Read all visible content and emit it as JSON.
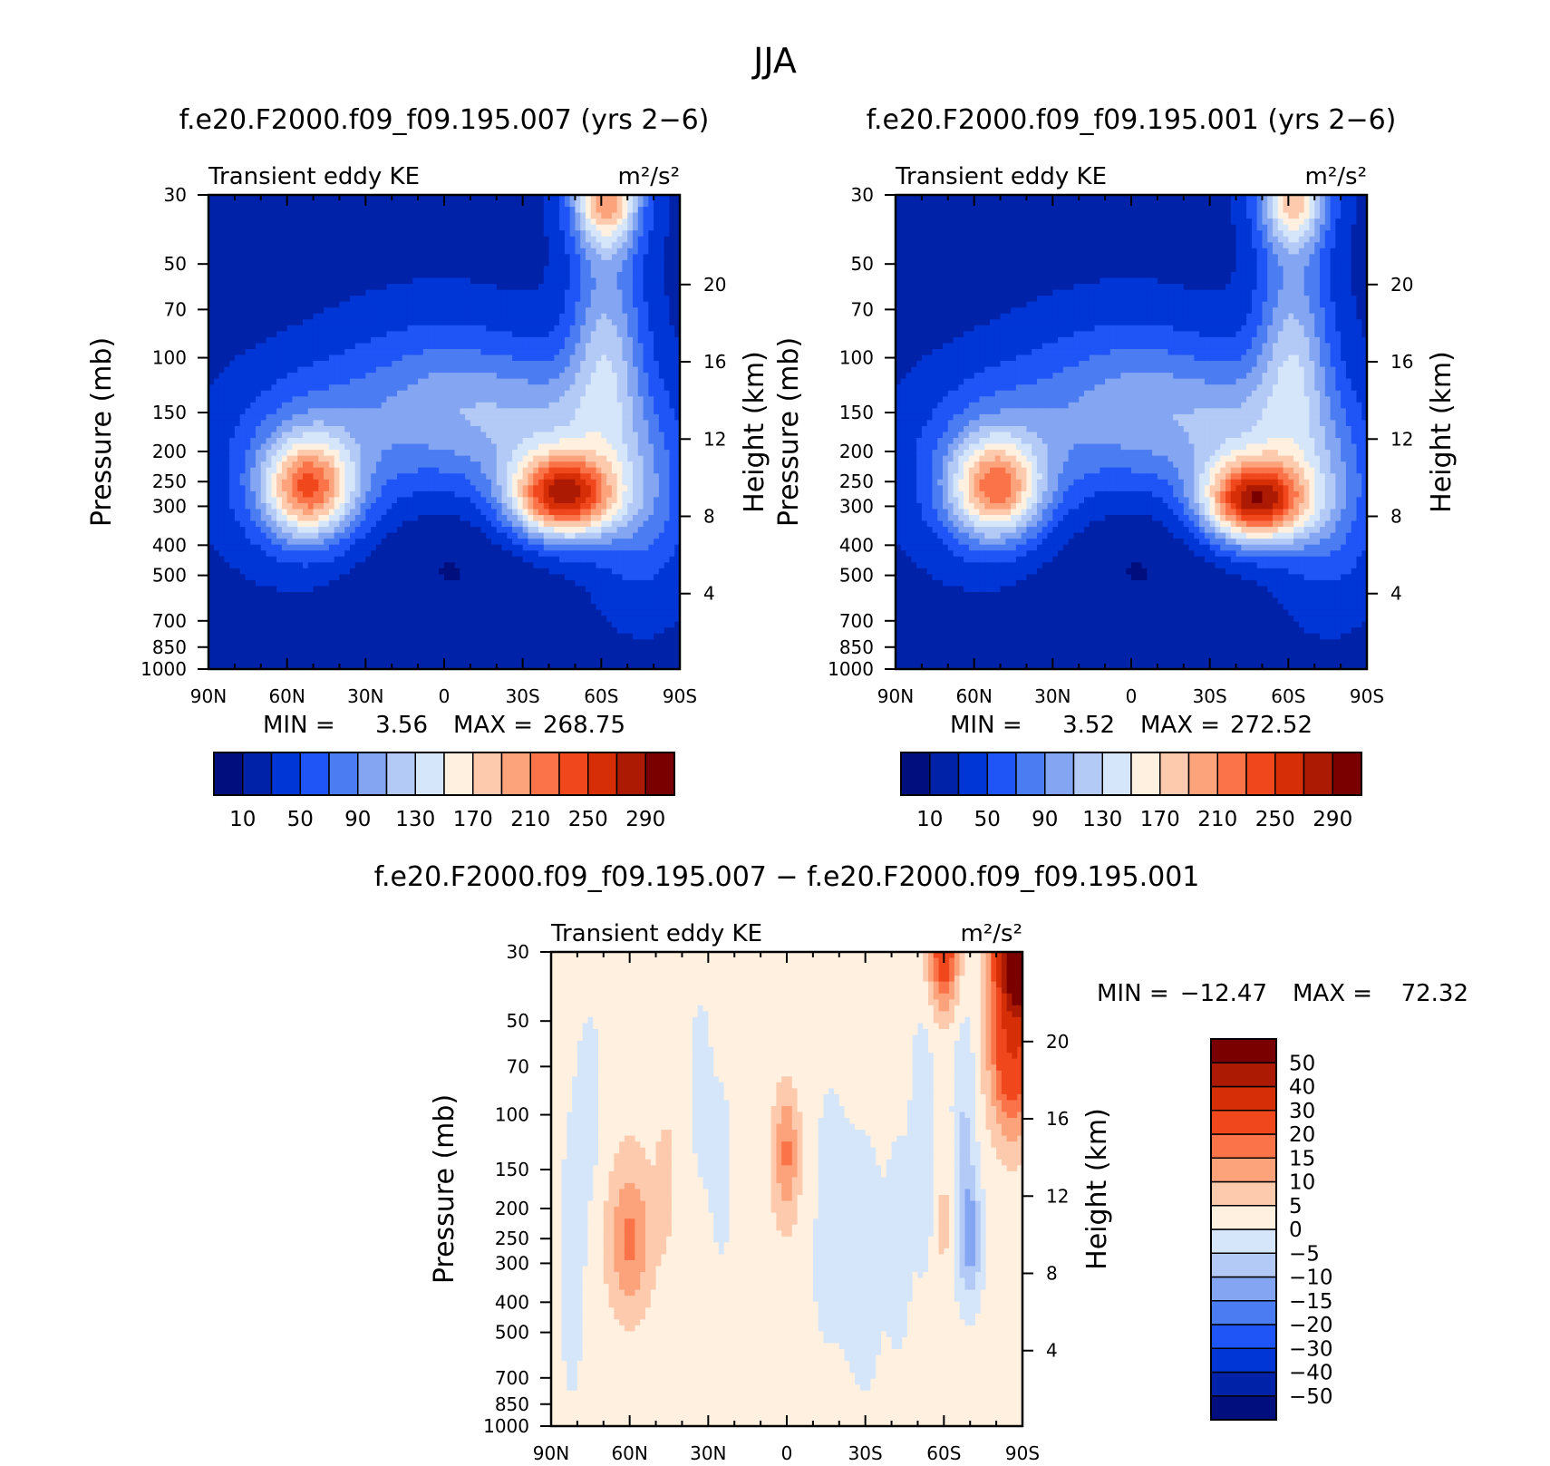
{
  "figure_title": "JJA",
  "colors": {
    "abs_scale": [
      "#000e7e",
      "#0022a8",
      "#0035d6",
      "#1f55f7",
      "#4b7cf2",
      "#84a6f2",
      "#b3c9f6",
      "#d6e6fa",
      "#fff0e0",
      "#fdcaad",
      "#fca37c",
      "#fb7349",
      "#f0471d",
      "#d62e07",
      "#ad1a04",
      "#7a0000"
    ],
    "diff_scale": [
      "#000e7e",
      "#0022a8",
      "#0035d6",
      "#1f55f7",
      "#4b7cf2",
      "#84a6f2",
      "#b3c9f6",
      "#d6e6fa",
      "#fff0e0",
      "#fdcaad",
      "#fca37c",
      "#fb7349",
      "#f0471d",
      "#d62e07",
      "#ad1a04",
      "#7a0000"
    ]
  },
  "chart_data": [
    {
      "type": "heatmap",
      "title": "f.e20.F2000.f09_f09.195.007 (yrs 2−6)",
      "left_label": "Transient eddy KE",
      "right_label": "m²/s²",
      "ylabel": "Pressure (mb)",
      "ylabel_right": "Height (km)",
      "log_y": true,
      "ylim": [
        1000,
        30
      ],
      "xlim": [
        90,
        -90
      ],
      "x_ticks": [
        {
          "lat": 90,
          "label": "90N"
        },
        {
          "lat": 60,
          "label": "60N"
        },
        {
          "lat": 30,
          "label": "30N"
        },
        {
          "lat": 0,
          "label": "0"
        },
        {
          "lat": -30,
          "label": "30S"
        },
        {
          "lat": -60,
          "label": "60S"
        },
        {
          "lat": -90,
          "label": "90S"
        }
      ],
      "y_ticks": [
        {
          "p": 30,
          "label": "30"
        },
        {
          "p": 50,
          "label": "50"
        },
        {
          "p": 70,
          "label": "70"
        },
        {
          "p": 100,
          "label": "100"
        },
        {
          "p": 150,
          "label": "150"
        },
        {
          "p": 200,
          "label": "200"
        },
        {
          "p": 250,
          "label": "250"
        },
        {
          "p": 300,
          "label": "300"
        },
        {
          "p": 400,
          "label": "400"
        },
        {
          "p": 500,
          "label": "500"
        },
        {
          "p": 700,
          "label": "700"
        },
        {
          "p": 850,
          "label": "850"
        },
        {
          "p": 1000,
          "label": "1000"
        }
      ],
      "height_ticks": [
        {
          "km": 4,
          "label": "4"
        },
        {
          "km": 8,
          "label": "8"
        },
        {
          "km": 12,
          "label": "12"
        },
        {
          "km": 16,
          "label": "16"
        },
        {
          "km": 20,
          "label": "20"
        }
      ],
      "min_label": "MIN =",
      "min_value": "3.56",
      "max_label": "MAX =",
      "max_value": "268.75",
      "levels": [
        10,
        30,
        50,
        70,
        90,
        110,
        130,
        150,
        170,
        190,
        210,
        230,
        250,
        270,
        290
      ],
      "colorbar_labels": [
        "10",
        "50",
        "90",
        "130",
        "170",
        "210",
        "250",
        "290"
      ],
      "background": 24,
      "features": [
        {
          "lat": -45,
          "p": 280,
          "amp": 225,
          "wlat": 14,
          "wz": 0.22
        },
        {
          "lat": -42,
          "p": 170,
          "amp": 70,
          "wlat": 22,
          "wz": 0.38
        },
        {
          "lat": 52,
          "p": 265,
          "amp": 158,
          "wlat": 12,
          "wz": 0.26
        },
        {
          "lat": 52,
          "p": 220,
          "amp": 55,
          "wlat": 22,
          "wz": 0.45
        },
        {
          "lat": -62,
          "p": 30,
          "amp": 175,
          "wlat": 9,
          "wz": 0.28
        },
        {
          "lat": -62,
          "p": 90,
          "amp": 85,
          "wlat": 10,
          "wz": 0.55
        },
        {
          "lat": 10,
          "p": 150,
          "amp": 45,
          "wlat": 28,
          "wz": 0.45
        },
        {
          "lat": -5,
          "p": 140,
          "amp": 30,
          "wlat": 20,
          "wz": 0.4
        },
        {
          "lat": -75,
          "p": 280,
          "amp": 55,
          "wlat": 14,
          "wz": 0.5
        },
        {
          "lat": 0,
          "p": 420,
          "amp": -18,
          "wlat": 30,
          "wz": 0.4
        },
        {
          "lat": 75,
          "p": 40,
          "amp": -12,
          "wlat": 20,
          "wz": 0.4
        }
      ]
    },
    {
      "type": "heatmap",
      "title": "f.e20.F2000.f09_f09.195.001 (yrs 2−6)",
      "left_label": "Transient eddy KE",
      "right_label": "m²/s²",
      "ylabel": "Pressure (mb)",
      "ylabel_right": "Height (km)",
      "log_y": true,
      "ylim": [
        1000,
        30
      ],
      "xlim": [
        90,
        -90
      ],
      "x_ticks": [
        {
          "lat": 90,
          "label": "90N"
        },
        {
          "lat": 60,
          "label": "60N"
        },
        {
          "lat": 30,
          "label": "30N"
        },
        {
          "lat": 0,
          "label": "0"
        },
        {
          "lat": -30,
          "label": "30S"
        },
        {
          "lat": -60,
          "label": "60S"
        },
        {
          "lat": -90,
          "label": "90S"
        }
      ],
      "y_ticks": [
        {
          "p": 30,
          "label": "30"
        },
        {
          "p": 50,
          "label": "50"
        },
        {
          "p": 70,
          "label": "70"
        },
        {
          "p": 100,
          "label": "100"
        },
        {
          "p": 150,
          "label": "150"
        },
        {
          "p": 200,
          "label": "200"
        },
        {
          "p": 250,
          "label": "250"
        },
        {
          "p": 300,
          "label": "300"
        },
        {
          "p": 400,
          "label": "400"
        },
        {
          "p": 500,
          "label": "500"
        },
        {
          "p": 700,
          "label": "700"
        },
        {
          "p": 850,
          "label": "850"
        },
        {
          "p": 1000,
          "label": "1000"
        }
      ],
      "height_ticks": [
        {
          "km": 4,
          "label": "4"
        },
        {
          "km": 8,
          "label": "8"
        },
        {
          "km": 12,
          "label": "12"
        },
        {
          "km": 16,
          "label": "16"
        },
        {
          "km": 20,
          "label": "20"
        }
      ],
      "min_label": "MIN =",
      "min_value": "3.52",
      "max_label": "MAX =",
      "max_value": "272.52",
      "levels": [
        10,
        30,
        50,
        70,
        90,
        110,
        130,
        150,
        170,
        190,
        210,
        230,
        250,
        270,
        290
      ],
      "colorbar_labels": [
        "10",
        "50",
        "90",
        "130",
        "170",
        "210",
        "250",
        "290"
      ],
      "background": 24,
      "features": [
        {
          "lat": -47,
          "p": 290,
          "amp": 232,
          "wlat": 14,
          "wz": 0.22
        },
        {
          "lat": -43,
          "p": 170,
          "amp": 70,
          "wlat": 22,
          "wz": 0.38
        },
        {
          "lat": 52,
          "p": 265,
          "amp": 148,
          "wlat": 12,
          "wz": 0.26
        },
        {
          "lat": 52,
          "p": 220,
          "amp": 55,
          "wlat": 22,
          "wz": 0.45
        },
        {
          "lat": -62,
          "p": 30,
          "amp": 150,
          "wlat": 9,
          "wz": 0.28
        },
        {
          "lat": -62,
          "p": 90,
          "amp": 85,
          "wlat": 10,
          "wz": 0.55
        },
        {
          "lat": 10,
          "p": 150,
          "amp": 45,
          "wlat": 28,
          "wz": 0.45
        },
        {
          "lat": -5,
          "p": 140,
          "amp": 30,
          "wlat": 20,
          "wz": 0.4
        },
        {
          "lat": -75,
          "p": 280,
          "amp": 55,
          "wlat": 14,
          "wz": 0.5
        },
        {
          "lat": 0,
          "p": 420,
          "amp": -18,
          "wlat": 30,
          "wz": 0.4
        },
        {
          "lat": 75,
          "p": 40,
          "amp": -12,
          "wlat": 20,
          "wz": 0.4
        }
      ]
    },
    {
      "type": "heatmap",
      "title": "f.e20.F2000.f09_f09.195.007 − f.e20.F2000.f09_f09.195.001",
      "left_label": "Transient eddy KE",
      "right_label": "m²/s²",
      "ylabel": "Pressure (mb)",
      "ylabel_right": "Height (km)",
      "log_y": true,
      "ylim": [
        1000,
        30
      ],
      "xlim": [
        90,
        -90
      ],
      "x_ticks": [
        {
          "lat": 90,
          "label": "90N"
        },
        {
          "lat": 60,
          "label": "60N"
        },
        {
          "lat": 30,
          "label": "30N"
        },
        {
          "lat": 0,
          "label": "0"
        },
        {
          "lat": -30,
          "label": "30S"
        },
        {
          "lat": -60,
          "label": "60S"
        },
        {
          "lat": -90,
          "label": "90S"
        }
      ],
      "y_ticks": [
        {
          "p": 30,
          "label": "30"
        },
        {
          "p": 50,
          "label": "50"
        },
        {
          "p": 70,
          "label": "70"
        },
        {
          "p": 100,
          "label": "100"
        },
        {
          "p": 150,
          "label": "150"
        },
        {
          "p": 200,
          "label": "200"
        },
        {
          "p": 250,
          "label": "250"
        },
        {
          "p": 300,
          "label": "300"
        },
        {
          "p": 400,
          "label": "400"
        },
        {
          "p": 500,
          "label": "500"
        },
        {
          "p": 700,
          "label": "700"
        },
        {
          "p": 850,
          "label": "850"
        },
        {
          "p": 1000,
          "label": "1000"
        }
      ],
      "height_ticks": [
        {
          "km": 4,
          "label": "4"
        },
        {
          "km": 8,
          "label": "8"
        },
        {
          "km": 12,
          "label": "12"
        },
        {
          "km": 16,
          "label": "16"
        },
        {
          "km": 20,
          "label": "20"
        }
      ],
      "min_label": "MIN =",
      "min_value": "−12.47",
      "max_label": "MAX =",
      "max_value": "72.32",
      "levels": [
        -50,
        -40,
        -30,
        -20,
        -15,
        -10,
        -5,
        0,
        5,
        10,
        15,
        20,
        30,
        40,
        50
      ],
      "colorbar_labels": [
        "−50",
        "−40",
        "−30",
        "−20",
        "−15",
        "−10",
        "−5",
        "0",
        "5",
        "10",
        "15",
        "20",
        "30",
        "40",
        "50"
      ],
      "background": 1.5,
      "features": [
        {
          "lat": -90,
          "p": 30,
          "amp": 75,
          "wlat": 6,
          "wz": 0.28
        },
        {
          "lat": -86,
          "p": 60,
          "amp": 28,
          "wlat": 6,
          "wz": 0.45
        },
        {
          "lat": -60,
          "p": 30,
          "amp": 25,
          "wlat": 4,
          "wz": 0.3
        },
        {
          "lat": -60,
          "p": 220,
          "amp": 5,
          "wlat": 2,
          "wz": 0.4
        },
        {
          "lat": -70,
          "p": 250,
          "amp": -14,
          "wlat": 3,
          "wz": 0.3
        },
        {
          "lat": -68,
          "p": 110,
          "amp": -7,
          "wlat": 3,
          "wz": 0.6
        },
        {
          "lat": -52,
          "p": 120,
          "amp": -6,
          "wlat": 3,
          "wz": 0.6
        },
        {
          "lat": -43,
          "p": 260,
          "amp": -4.5,
          "wlat": 3,
          "wz": 0.5
        },
        {
          "lat": -30,
          "p": 300,
          "amp": -3,
          "wlat": 6,
          "wz": 0.8
        },
        {
          "lat": -15,
          "p": 200,
          "amp": -3,
          "wlat": 6,
          "wz": 0.8
        },
        {
          "lat": 60,
          "p": 260,
          "amp": 11,
          "wlat": 6,
          "wz": 0.35
        },
        {
          "lat": 60,
          "p": 200,
          "amp": 4,
          "wlat": 7,
          "wz": 0.6
        },
        {
          "lat": 46,
          "p": 160,
          "amp": 5,
          "wlat": 3,
          "wz": 0.4
        },
        {
          "lat": 0,
          "p": 130,
          "amp": 11,
          "wlat": 3,
          "wz": 0.3
        },
        {
          "lat": 0,
          "p": 150,
          "amp": 4,
          "wlat": 7,
          "wz": 0.5
        },
        {
          "lat": 25,
          "p": 150,
          "amp": -2.5,
          "wlat": 4,
          "wz": 0.6
        },
        {
          "lat": 82,
          "p": 300,
          "amp": -3,
          "wlat": 4,
          "wz": 0.8
        },
        {
          "lat": 75,
          "p": 100,
          "amp": -3,
          "wlat": 4,
          "wz": 0.6
        },
        {
          "lat": 33,
          "p": 80,
          "amp": -3,
          "wlat": 3,
          "wz": 0.5
        }
      ]
    }
  ]
}
